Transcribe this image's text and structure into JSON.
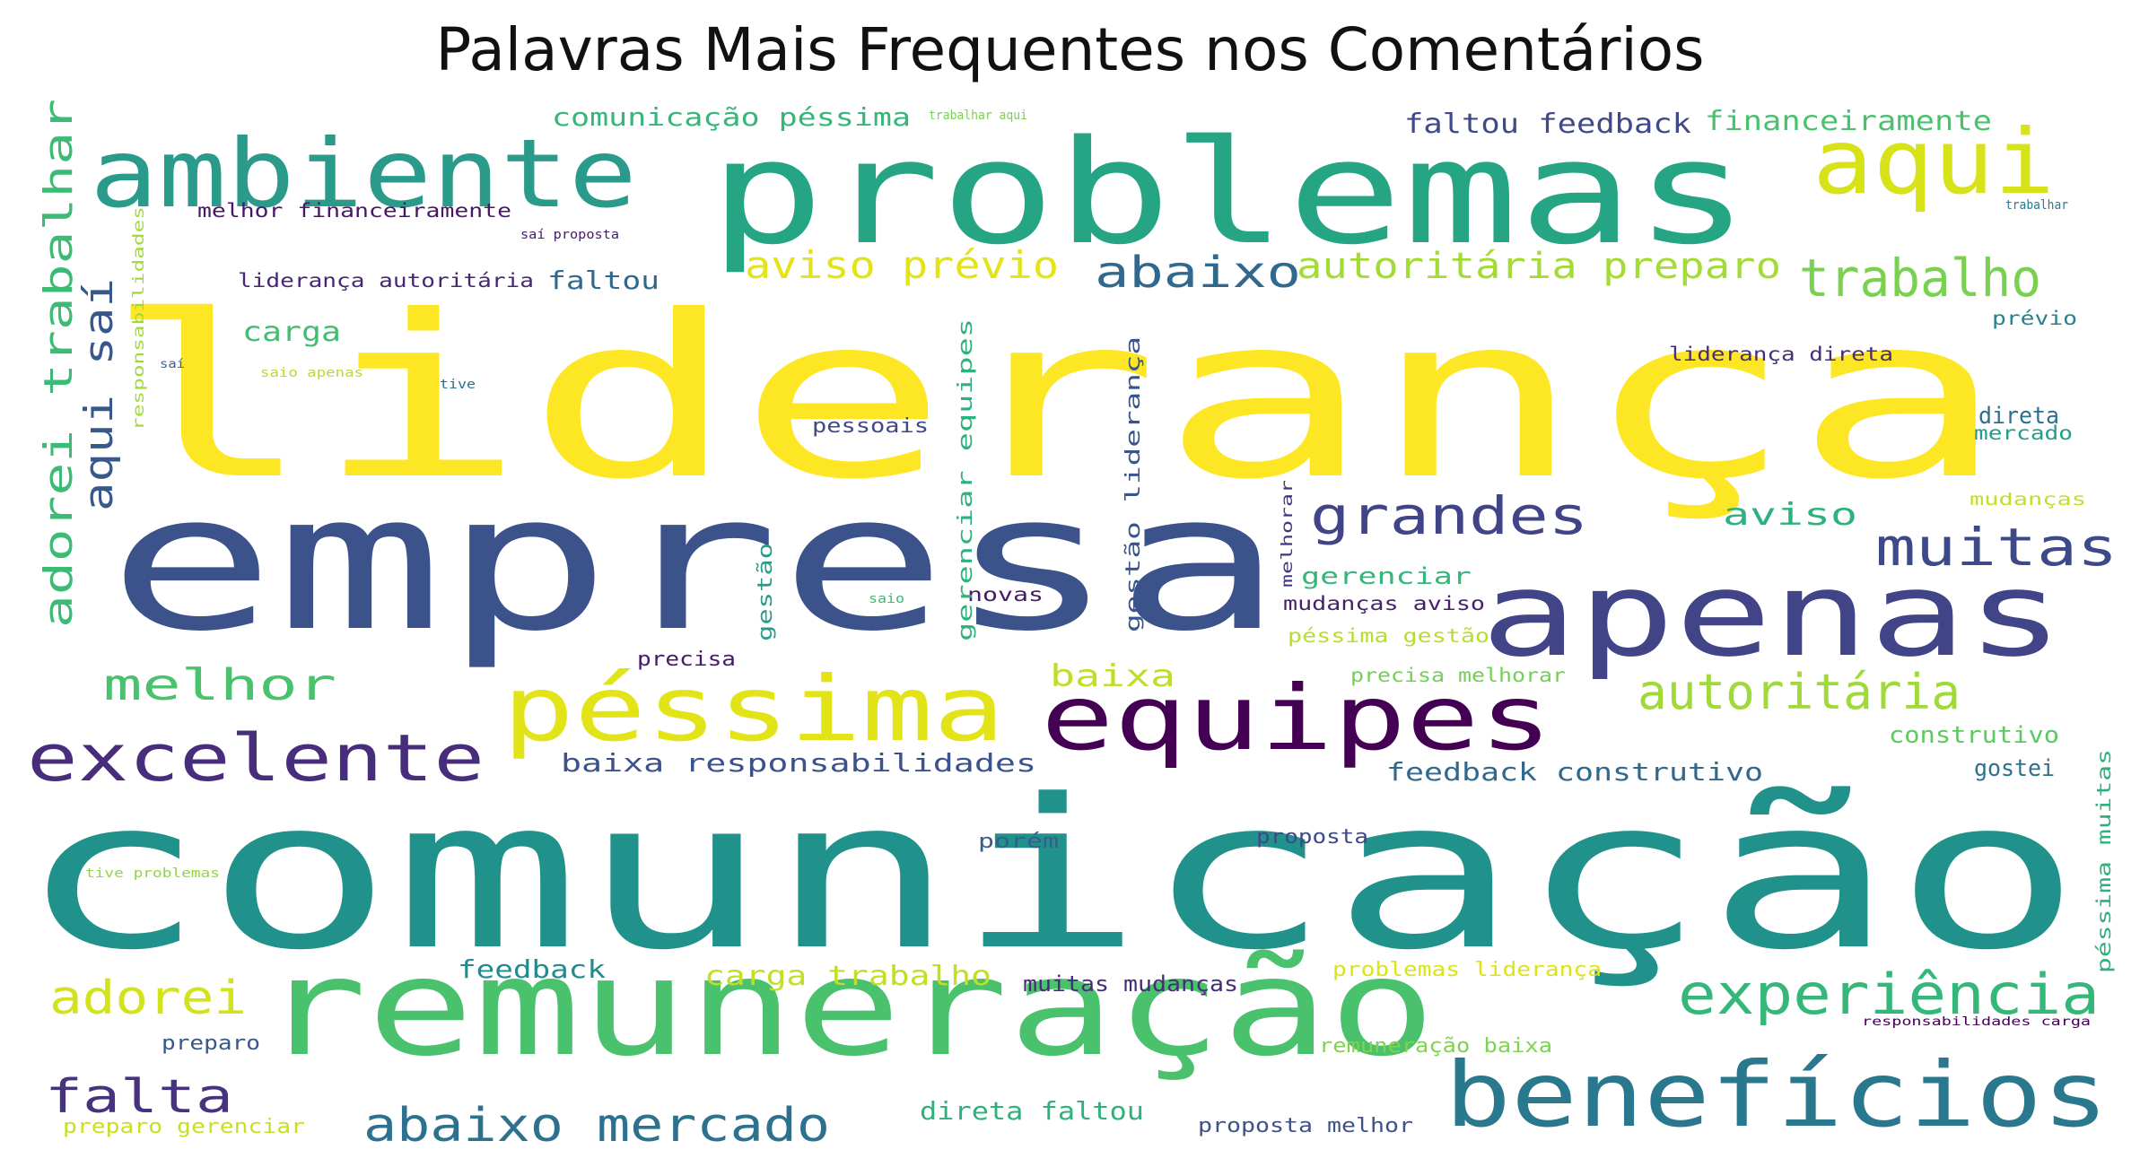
{
  "title": "Palavras Mais Frequentes nos Comentários",
  "words": [
    {
      "text": "liderança",
      "color": "#fde725"
    },
    {
      "text": "comunicação",
      "color": "#21918c"
    },
    {
      "text": "empresa",
      "color": "#3b528b"
    },
    {
      "text": "problemas",
      "color": "#25a584"
    },
    {
      "text": "remuneração",
      "color": "#4ac16d"
    },
    {
      "text": "apenas",
      "color": "#414487"
    },
    {
      "text": "ambiente",
      "color": "#2a9b8a"
    },
    {
      "text": "benefícios",
      "color": "#2a788e"
    },
    {
      "text": "péssima",
      "color": "#e2e418"
    },
    {
      "text": "equipes",
      "color": "#440154"
    },
    {
      "text": "aqui",
      "color": "#d8e219"
    },
    {
      "text": "excelente",
      "color": "#472d7b"
    },
    {
      "text": "experiência",
      "color": "#35b779"
    },
    {
      "text": "trabalho",
      "color": "#7ad151"
    },
    {
      "text": "grandes",
      "color": "#414487"
    },
    {
      "text": "muitas",
      "color": "#3e4989"
    },
    {
      "text": "autoritária",
      "color": "#a0da39"
    },
    {
      "text": "abaixo mercado",
      "color": "#2c728e"
    },
    {
      "text": "adorei",
      "color": "#d2e21b"
    },
    {
      "text": "falta",
      "color": "#46327e"
    },
    {
      "text": "melhor",
      "color": "#4ac16d"
    },
    {
      "text": "abaixo",
      "color": "#31688e"
    },
    {
      "text": "aviso prévio",
      "color": "#e2e418"
    },
    {
      "text": "autoritária preparo",
      "color": "#a5db36"
    },
    {
      "text": "adorei trabalhar",
      "color": "#3bbb75"
    },
    {
      "text": "aqui saí",
      "color": "#38588c"
    },
    {
      "text": "baixa",
      "color": "#bddf26"
    },
    {
      "text": "aviso",
      "color": "#2db27d"
    },
    {
      "text": "carga trabalho",
      "color": "#c2df23"
    },
    {
      "text": "baixa responsabilidades",
      "color": "#3b528b"
    },
    {
      "text": "feedback construtivo",
      "color": "#31688e"
    },
    {
      "text": "faltou feedback",
      "color": "#3e4a89"
    },
    {
      "text": "financeiramente",
      "color": "#4ac16d"
    },
    {
      "text": "comunicação péssima",
      "color": "#35b779"
    },
    {
      "text": "direta faltou",
      "color": "#2db27d"
    },
    {
      "text": "feedback",
      "color": "#238a8d"
    },
    {
      "text": "carga",
      "color": "#42be71"
    },
    {
      "text": "faltou",
      "color": "#31688e"
    },
    {
      "text": "gerenciar",
      "color": "#35b779"
    },
    {
      "text": "direta",
      "color": "#2d708e"
    },
    {
      "text": "construtivo",
      "color": "#5ec962"
    },
    {
      "text": "gostei",
      "color": "#2c728e"
    },
    {
      "text": "muitas mudanças",
      "color": "#472c7a"
    },
    {
      "text": "problemas liderança",
      "color": "#dde318"
    },
    {
      "text": "remuneração baixa",
      "color": "#7fd34e"
    },
    {
      "text": "proposta melhor",
      "color": "#3b528b"
    },
    {
      "text": "preparo gerenciar",
      "color": "#c8e020"
    },
    {
      "text": "preparo",
      "color": "#38588c"
    },
    {
      "text": "proposta",
      "color": "#3e4989"
    },
    {
      "text": "porém",
      "color": "#355f8d"
    },
    {
      "text": "precisa",
      "color": "#48186a"
    },
    {
      "text": "precisa melhorar",
      "color": "#73d056"
    },
    {
      "text": "péssima gestão",
      "color": "#b8de29"
    },
    {
      "text": "mudanças aviso",
      "color": "#481f70"
    },
    {
      "text": "pessoais",
      "color": "#3e4989"
    },
    {
      "text": "novas",
      "color": "#48186a"
    },
    {
      "text": "liderança direta",
      "color": "#472d7b"
    },
    {
      "text": "liderança autoritária",
      "color": "#482576"
    },
    {
      "text": "melhor financeiramente",
      "color": "#481769"
    },
    {
      "text": "prévio",
      "color": "#26828e"
    },
    {
      "text": "mercado",
      "color": "#1f9e89"
    },
    {
      "text": "mudanças",
      "color": "#c0df25"
    },
    {
      "text": "trabalhar aqui",
      "color": "#7ad151"
    },
    {
      "text": "trabalhar",
      "color": "#2a788e"
    },
    {
      "text": "saí proposta",
      "color": "#481b6d"
    },
    {
      "text": "saio apenas",
      "color": "#b5de2b"
    },
    {
      "text": "saí",
      "color": "#33638d"
    },
    {
      "text": "tive",
      "color": "#2d708e"
    },
    {
      "text": "saio",
      "color": "#3bbb75"
    },
    {
      "text": "tive problemas",
      "color": "#8fd744"
    },
    {
      "text": "responsabilidades carga",
      "color": "#440154"
    },
    {
      "text": "responsabilidades",
      "color": "#a0da39"
    },
    {
      "text": "gestão",
      "color": "#2a9b8a"
    },
    {
      "text": "gerenciar equipes",
      "color": "#2db27d"
    },
    {
      "text": "gestão liderança",
      "color": "#39558c"
    },
    {
      "text": "melhorar",
      "color": "#46337f"
    },
    {
      "text": "péssima muitas",
      "color": "#2db27d"
    }
  ]
}
